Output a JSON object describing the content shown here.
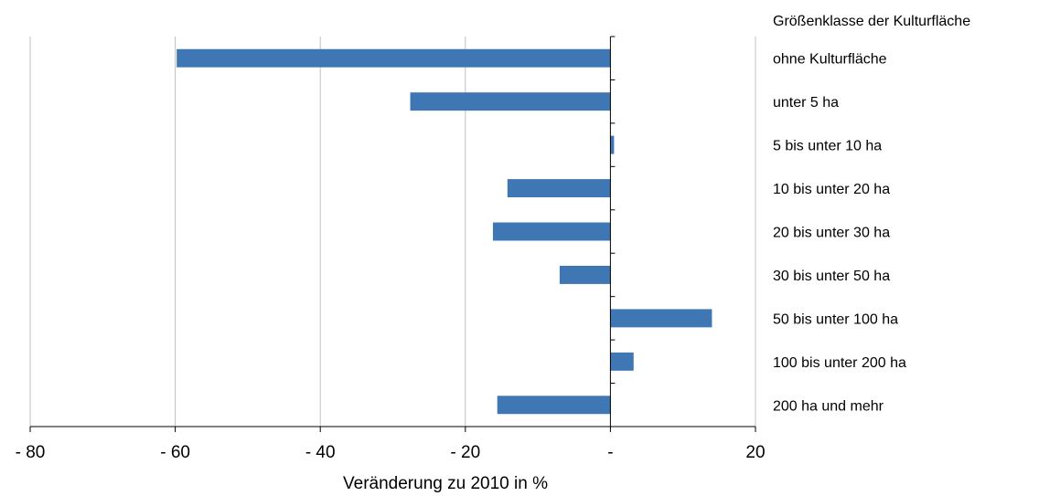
{
  "chart_data": {
    "type": "bar",
    "orientation": "horizontal",
    "category_title": "Größenklasse der Kulturfläche",
    "categories": [
      "ohne Kulturfläche",
      "unter 5 ha",
      "5 bis unter 10 ha",
      "10 bis unter 20 ha",
      "20 bis unter 30 ha",
      "30 bis unter 50 ha",
      "50 bis unter 100 ha",
      "100 bis unter 200 ha",
      "200 ha und mehr"
    ],
    "values": [
      -59.8,
      -27.6,
      0.5,
      -14.2,
      -16.2,
      -7.0,
      14.0,
      3.2,
      -15.6
    ],
    "xlabel": "Veränderung zu 2010 in %",
    "xlim": [
      -80,
      20
    ],
    "xticks": [
      -80,
      -60,
      -40,
      -20,
      0,
      20
    ],
    "xtick_labels": [
      "- 80",
      "- 60",
      "- 40",
      "- 20",
      "-",
      "20"
    ],
    "bar_color": "#3f77b4",
    "grid": "vertical",
    "gridline_color": "#c0c0c0"
  }
}
